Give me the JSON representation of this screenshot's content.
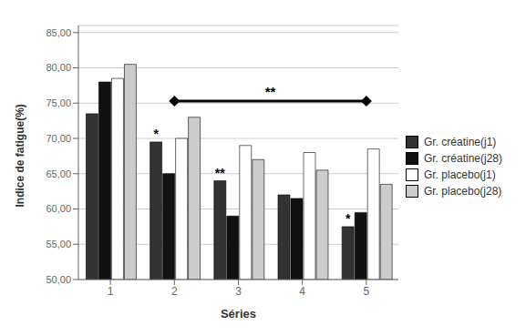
{
  "chart_data": {
    "type": "bar",
    "xlabel": "Séries",
    "ylabel": "Indice de fatigue(%)",
    "categories": [
      "1",
      "2",
      "3",
      "4",
      "5"
    ],
    "series": [
      {
        "name": "Gr. créatine(j1)",
        "color": "#333333",
        "values": [
          73.5,
          69.5,
          64.0,
          62.0,
          57.5
        ]
      },
      {
        "name": "Gr. créatine(j28)",
        "color": "#111111",
        "values": [
          78.0,
          65.0,
          59.0,
          61.5,
          59.5
        ]
      },
      {
        "name": "Gr. placebo(j1)",
        "color": "#ffffff",
        "values": [
          78.5,
          70.0,
          69.0,
          68.0,
          68.5
        ]
      },
      {
        "name": "Gr. placebo(j28)",
        "color": "#cccccc",
        "values": [
          80.5,
          73.0,
          67.0,
          65.5,
          63.5
        ]
      }
    ],
    "ylim": [
      50,
      86
    ],
    "yticks": [
      {
        "value": 50,
        "label": "50,00"
      },
      {
        "value": 55,
        "label": "55,00"
      },
      {
        "value": 60,
        "label": "60,00"
      },
      {
        "value": 65,
        "label": "65,00"
      },
      {
        "value": 70,
        "label": "70,00"
      },
      {
        "value": 75,
        "label": "75,00"
      },
      {
        "value": 80,
        "label": "80,00"
      },
      {
        "value": 85,
        "label": "85,00"
      }
    ],
    "grid": true,
    "legend": "right",
    "annotations": [
      {
        "text": "**",
        "y": 75.3,
        "from": "2",
        "to": "5"
      },
      {
        "text": "*",
        "category": "2",
        "series": "Gr. créatine(j1)"
      },
      {
        "text": "**",
        "category": "3",
        "series": "Gr. créatine(j1)"
      },
      {
        "text": "*",
        "category": "5",
        "series": "Gr. créatine(j1)"
      }
    ]
  }
}
